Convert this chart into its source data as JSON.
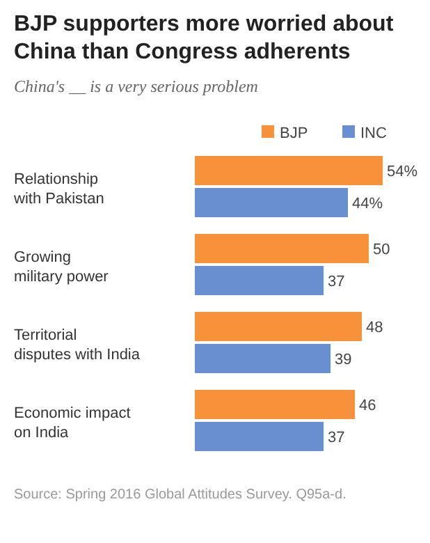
{
  "chart_data": {
    "type": "bar",
    "orientation": "horizontal",
    "title": "BJP supporters more worried about China than Congress adherents",
    "subtitle": "China's __ is a very serious problem",
    "categories": [
      "Relationship with Pakistan",
      "Growing military power",
      "Territorial disputes with India",
      "Economic impact on India"
    ],
    "series": [
      {
        "name": "BJP",
        "color": "#f7923a",
        "values": [
          54,
          50,
          48,
          46
        ],
        "value_labels": [
          "54%",
          "50",
          "48",
          "46"
        ]
      },
      {
        "name": "INC",
        "color": "#6a8fd0",
        "values": [
          44,
          37,
          39,
          37
        ],
        "value_labels": [
          "44%",
          "37",
          "39",
          "37"
        ]
      }
    ],
    "legend": "top",
    "annotations": [
      "Source: Spring 2016 Global Attitudes Survey. Q95a-d."
    ]
  }
}
